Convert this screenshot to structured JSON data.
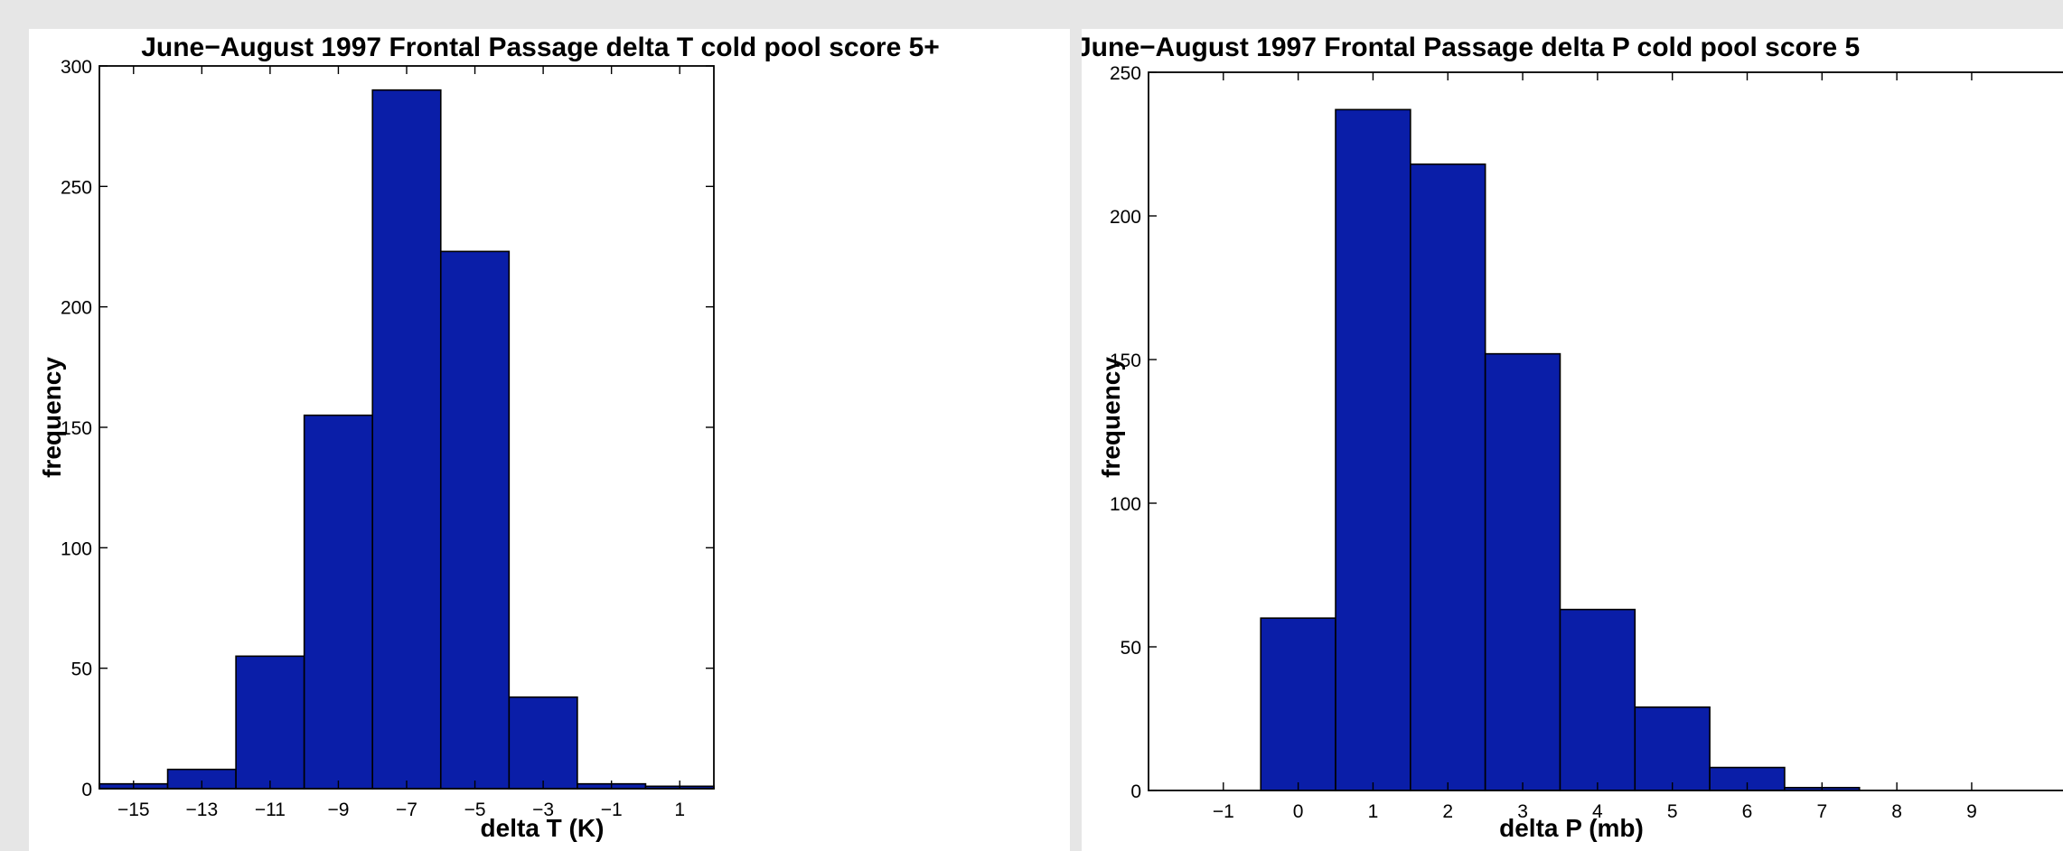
{
  "chart_data": [
    {
      "type": "bar",
      "title": "June−August 1997 Frontal Passage delta T cold pool score 5+",
      "xlabel": "delta T (K)",
      "ylabel": "frequency",
      "bin_centers": [
        -15,
        -13,
        -11,
        -9,
        -7,
        -5,
        -3,
        -1,
        1
      ],
      "bin_width": 2,
      "values": [
        2,
        8,
        55,
        155,
        290,
        223,
        38,
        2,
        1
      ],
      "xlim": [
        -16,
        2
      ],
      "ylim": [
        0,
        300
      ],
      "xticks": [
        "−15",
        "−13",
        "−11",
        "−9",
        "−7",
        "−5",
        "−3",
        "−1",
        "1"
      ],
      "xtick_values": [
        -15,
        -13,
        -11,
        -9,
        -7,
        -5,
        -3,
        -1,
        1
      ],
      "yticks": [
        "0",
        "50",
        "100",
        "150",
        "200",
        "250",
        "300"
      ],
      "ytick_values": [
        0,
        50,
        100,
        150,
        200,
        250,
        300
      ],
      "grid": false,
      "bar_color": "#0a1ea8"
    },
    {
      "type": "bar",
      "title": "June−August 1997 Frontal Passage delta P cold pool score 5",
      "xlabel": "delta P (mb)",
      "ylabel": "frequency",
      "bin_centers": [
        -1,
        0,
        1,
        2,
        3,
        4,
        5,
        6,
        7,
        8,
        9
      ],
      "bin_width": 1,
      "values": [
        0,
        60,
        237,
        218,
        152,
        63,
        29,
        8,
        1,
        0,
        0
      ],
      "xlim": [
        -2,
        10.8
      ],
      "ylim": [
        0,
        250
      ],
      "xticks": [
        "−1",
        "0",
        "1",
        "2",
        "3",
        "4",
        "5",
        "6",
        "7",
        "8",
        "9"
      ],
      "xtick_values": [
        -1,
        0,
        1,
        2,
        3,
        4,
        5,
        6,
        7,
        8,
        9
      ],
      "yticks": [
        "0",
        "50",
        "100",
        "150",
        "200",
        "250"
      ],
      "ytick_values": [
        0,
        50,
        100,
        150,
        200,
        250
      ],
      "grid": false,
      "bar_color": "#0a1ea8"
    }
  ]
}
